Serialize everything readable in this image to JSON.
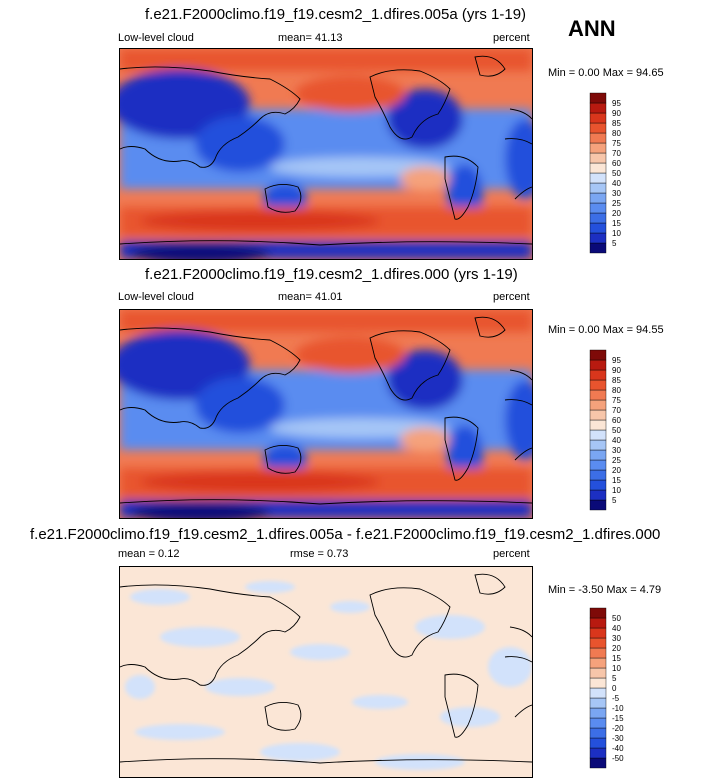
{
  "season": "ANN",
  "panels": [
    {
      "title": "f.e21.F2000climo.f19_f19.cesm2_1.dfires.005a (yrs 1-19)",
      "left_label": "Low-level cloud",
      "center_label": "mean=  41.13",
      "right_label": "percent",
      "minmax": "Min =   0.00 Max =  94.65"
    },
    {
      "title": "f.e21.F2000climo.f19_f19.cesm2_1.dfires.000 (yrs 1-19)",
      "left_label": "Low-level cloud",
      "center_label": "mean=  41.01",
      "right_label": "percent",
      "minmax": "Min =   0.00 Max =  94.55"
    },
    {
      "title": "f.e21.F2000climo.f19_f19.cesm2_1.dfires.005a - f.e21.F2000climo.f19_f19.cesm2_1.dfires.000",
      "left_label": "mean =   0.12",
      "center_label": "rmse =   0.73",
      "right_label": "percent",
      "minmax": "Min =  -3.50 Max =   4.79"
    }
  ],
  "chart_data": [
    {
      "type": "heatmap",
      "title": "f.e21.F2000climo.f19_f19.cesm2_1.dfires.005a (yrs 1-19)",
      "variable": "Low-level cloud",
      "units": "percent",
      "mean": 41.13,
      "min": 0.0,
      "max": 94.65,
      "colorbar_levels": [
        5,
        10,
        15,
        20,
        25,
        30,
        40,
        50,
        60,
        70,
        75,
        80,
        85,
        90,
        95
      ],
      "colorbar_colors": [
        "#0a0a78",
        "#1c2fc2",
        "#2450dc",
        "#3c6ee6",
        "#5a8cf0",
        "#7aa6f2",
        "#a6c6f6",
        "#d2e2fb",
        "#fbe6d6",
        "#f7c6aa",
        "#f5a27c",
        "#f07a52",
        "#e8542e",
        "#d9361c",
        "#b81a10",
        "#7e0a08"
      ]
    },
    {
      "type": "heatmap",
      "title": "f.e21.F2000climo.f19_f19.cesm2_1.dfires.000 (yrs 1-19)",
      "variable": "Low-level cloud",
      "units": "percent",
      "mean": 41.01,
      "min": 0.0,
      "max": 94.55,
      "colorbar_levels": [
        5,
        10,
        15,
        20,
        25,
        30,
        40,
        50,
        60,
        70,
        75,
        80,
        85,
        90,
        95
      ],
      "colorbar_colors": [
        "#0a0a78",
        "#1c2fc2",
        "#2450dc",
        "#3c6ee6",
        "#5a8cf0",
        "#7aa6f2",
        "#a6c6f6",
        "#d2e2fb",
        "#fbe6d6",
        "#f7c6aa",
        "#f5a27c",
        "#f07a52",
        "#e8542e",
        "#d9361c",
        "#b81a10",
        "#7e0a08"
      ]
    },
    {
      "type": "heatmap",
      "title": "f.e21.F2000climo.f19_f19.cesm2_1.dfires.005a - f.e21.F2000climo.f19_f19.cesm2_1.dfires.000",
      "units": "percent",
      "mean": 0.12,
      "rmse": 0.73,
      "min": -3.5,
      "max": 4.79,
      "colorbar_levels": [
        -50,
        -40,
        -30,
        -20,
        -15,
        -10,
        -5,
        0,
        5,
        10,
        15,
        20,
        30,
        40,
        50
      ],
      "colorbar_colors": [
        "#0a0a78",
        "#1c2fc2",
        "#2450dc",
        "#3c6ee6",
        "#5a8cf0",
        "#7aa6f2",
        "#a6c6f6",
        "#d2e2fb",
        "#fbe6d6",
        "#f7c6aa",
        "#f5a27c",
        "#f07a52",
        "#e8542e",
        "#d9361c",
        "#b81a10",
        "#7e0a08"
      ]
    }
  ]
}
